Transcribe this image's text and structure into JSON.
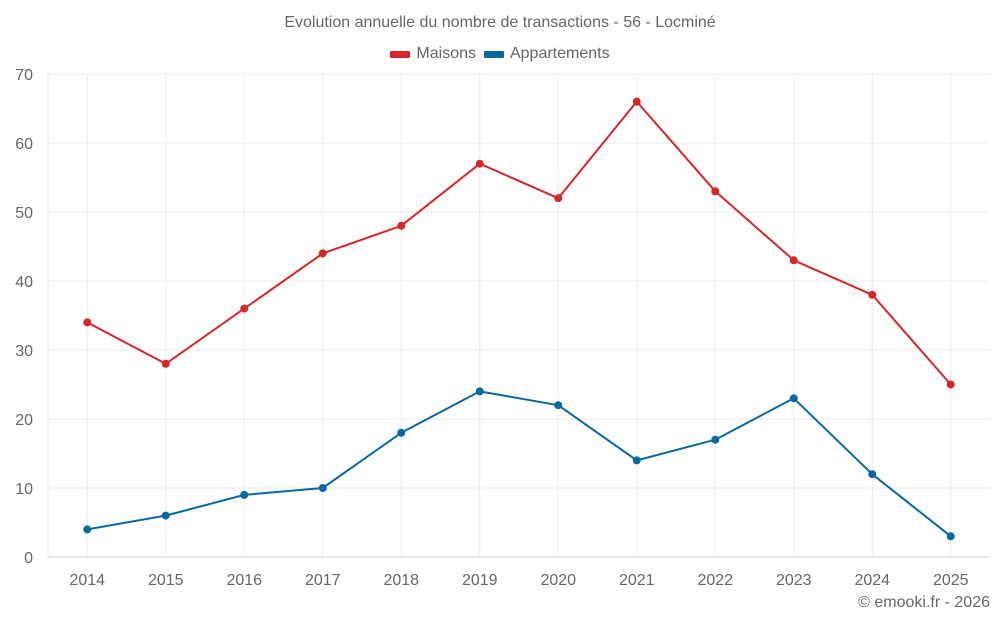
{
  "chart_data": {
    "type": "line",
    "title": "Evolution annuelle du nombre de transactions - 56 - Locminé",
    "xlabel": "",
    "ylabel": "",
    "categories": [
      "2014",
      "2015",
      "2016",
      "2017",
      "2018",
      "2019",
      "2020",
      "2021",
      "2022",
      "2023",
      "2024",
      "2025"
    ],
    "series": [
      {
        "name": "Maisons",
        "color": "#d62728",
        "values": [
          34,
          28,
          36,
          44,
          48,
          57,
          52,
          66,
          53,
          43,
          38,
          25
        ]
      },
      {
        "name": "Appartements",
        "color": "#0868a0",
        "values": [
          4,
          6,
          9,
          10,
          18,
          24,
          22,
          14,
          17,
          23,
          12,
          3
        ]
      }
    ],
    "ylim": [
      0,
      70
    ],
    "yticks": [
      0,
      10,
      20,
      30,
      40,
      50,
      60,
      70
    ],
    "grid": true,
    "legend_position": "top-center"
  },
  "credit": "© emooki.fr - 2026"
}
